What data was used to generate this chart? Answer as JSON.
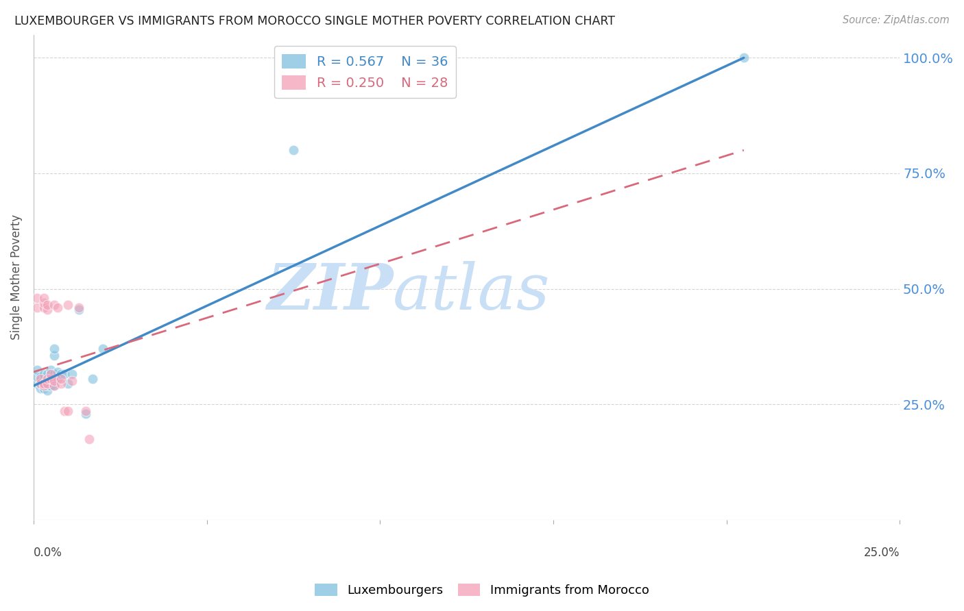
{
  "title": "LUXEMBOURGER VS IMMIGRANTS FROM MOROCCO SINGLE MOTHER POVERTY CORRELATION CHART",
  "source": "Source: ZipAtlas.com",
  "ylabel": "Single Mother Poverty",
  "legend_blue_R": "0.567",
  "legend_blue_N": "36",
  "legend_pink_R": "0.250",
  "legend_pink_N": "28",
  "blue_color": "#7fbfdf",
  "pink_color": "#f4a0b8",
  "blue_line_color": "#4189c7",
  "pink_line_color": "#d9687a",
  "grid_color": "#d0d0d0",
  "right_tick_color": "#4a90d9",
  "watermark_color": "#ddeeff",
  "background_color": "#ffffff",
  "blue_points_x": [
    0.001,
    0.001,
    0.001,
    0.002,
    0.002,
    0.002,
    0.003,
    0.003,
    0.003,
    0.003,
    0.004,
    0.004,
    0.004,
    0.004,
    0.004,
    0.005,
    0.005,
    0.005,
    0.005,
    0.006,
    0.006,
    0.006,
    0.006,
    0.006,
    0.007,
    0.007,
    0.008,
    0.009,
    0.01,
    0.011,
    0.013,
    0.015,
    0.017,
    0.02,
    0.075,
    0.205
  ],
  "blue_points_y": [
    0.295,
    0.31,
    0.325,
    0.285,
    0.295,
    0.31,
    0.285,
    0.295,
    0.305,
    0.315,
    0.28,
    0.29,
    0.3,
    0.31,
    0.315,
    0.29,
    0.305,
    0.315,
    0.325,
    0.29,
    0.305,
    0.315,
    0.355,
    0.37,
    0.305,
    0.32,
    0.315,
    0.315,
    0.295,
    0.315,
    0.455,
    0.23,
    0.305,
    0.37,
    0.8,
    1.0
  ],
  "pink_points_x": [
    0.001,
    0.001,
    0.002,
    0.002,
    0.003,
    0.003,
    0.003,
    0.003,
    0.003,
    0.004,
    0.004,
    0.004,
    0.004,
    0.005,
    0.005,
    0.006,
    0.006,
    0.006,
    0.007,
    0.008,
    0.008,
    0.009,
    0.01,
    0.01,
    0.011,
    0.013,
    0.015,
    0.016
  ],
  "pink_points_y": [
    0.46,
    0.48,
    0.295,
    0.305,
    0.29,
    0.295,
    0.46,
    0.47,
    0.48,
    0.295,
    0.305,
    0.455,
    0.465,
    0.305,
    0.315,
    0.29,
    0.3,
    0.465,
    0.46,
    0.295,
    0.305,
    0.235,
    0.235,
    0.465,
    0.3,
    0.46,
    0.235,
    0.175
  ],
  "blue_line_x0": 0.0,
  "blue_line_y0": 0.29,
  "blue_line_x1": 0.205,
  "blue_line_y1": 1.0,
  "pink_line_x0": 0.0,
  "pink_line_y0": 0.32,
  "pink_line_x1": 0.205,
  "pink_line_y1": 0.8,
  "xlim": [
    0.0,
    0.25
  ],
  "ylim": [
    0.0,
    1.05
  ],
  "y_tick_vals": [
    0.25,
    0.5,
    0.75,
    1.0
  ],
  "y_tick_labels": [
    "25.0%",
    "50.0%",
    "75.0%",
    "100.0%"
  ],
  "scatter_size": 110,
  "blue_alpha": 0.6,
  "pink_alpha": 0.6
}
